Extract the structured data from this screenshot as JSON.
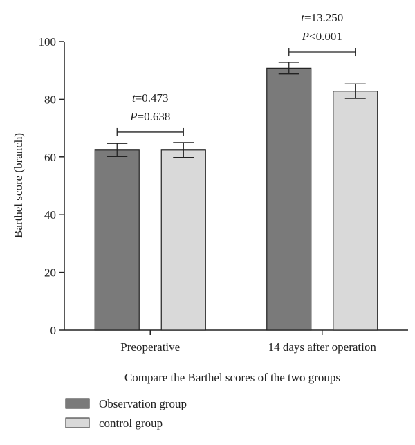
{
  "chart_data": {
    "type": "bar",
    "title": "",
    "xlabel": "Compare the Barthel scores of the two groups",
    "ylabel": "Barthel score (branch)",
    "ylim": [
      0,
      100
    ],
    "yticks": [
      0,
      20,
      40,
      60,
      80,
      100
    ],
    "categories": [
      "Preoperative",
      "14 days after operation"
    ],
    "series": [
      {
        "name": "Observation group",
        "values": [
          62.4,
          90.8
        ],
        "errors": [
          2.3,
          2.0
        ],
        "color": "#7a7a7a"
      },
      {
        "name": "control group",
        "values": [
          62.4,
          82.8
        ],
        "errors": [
          2.6,
          2.5
        ],
        "color": "#d9d9d9"
      }
    ],
    "annotations": [
      {
        "category": "Preoperative",
        "t_label": "t",
        "t_value": "=0.473",
        "p_label": "P",
        "p_value": "=0.638"
      },
      {
        "category": "14 days after operation",
        "t_label": "t",
        "t_value": "=13.250",
        "p_label": "P",
        "p_value": "<0.001"
      }
    ],
    "grid": false,
    "legend_position": "bottom-left"
  }
}
